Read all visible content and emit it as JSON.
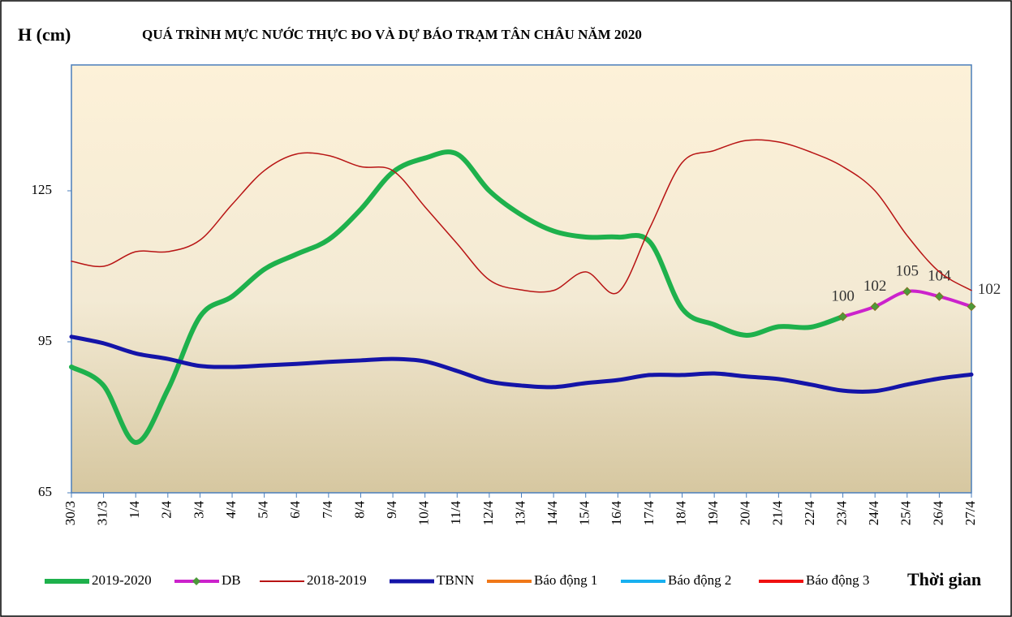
{
  "chart_data": {
    "type": "line",
    "title": "QUÁ TRÌNH MỰC NƯỚC THỰC ĐO VÀ DỰ BÁO TRẠM TÂN CHÂU NĂM 2020",
    "y_label": "H (cm)",
    "x_label": "Thời gian",
    "categories": [
      "30/3",
      "31/3",
      "1/4",
      "2/4",
      "3/4",
      "4/4",
      "5/4",
      "6/4",
      "7/4",
      "8/4",
      "9/4",
      "10/4",
      "11/4",
      "12/4",
      "13/4",
      "14/4",
      "15/4",
      "16/4",
      "17/4",
      "18/4",
      "19/4",
      "20/4",
      "21/4",
      "22/4",
      "23/4",
      "24/4",
      "25/4",
      "26/4",
      "27/4"
    ],
    "ylim": [
      65,
      150
    ],
    "yticks": [
      65,
      95,
      125
    ],
    "smooth": true,
    "series": [
      {
        "name": "2019-2020",
        "color": "#1eb14c",
        "values": [
          90,
          86.3,
          75,
          85.5,
          100,
          104,
          109.4,
          112.4,
          115.3,
          121.3,
          128.7,
          131.5,
          132.3,
          125,
          120.2,
          117,
          115.8,
          115.8,
          114.8,
          101.6,
          98.4,
          96.3,
          98,
          97.9,
          100,
          null,
          null,
          null,
          null
        ]
      },
      {
        "name": "DB",
        "color": "#cc22cc",
        "marker": "#4c9a3a",
        "data_labels": true,
        "values": [
          null,
          null,
          null,
          null,
          null,
          null,
          null,
          null,
          null,
          null,
          null,
          null,
          null,
          null,
          null,
          null,
          null,
          null,
          null,
          null,
          null,
          null,
          null,
          null,
          100,
          102,
          105,
          104,
          102
        ]
      },
      {
        "name": "2018-2019",
        "color": "#b81414",
        "values": [
          111,
          110,
          112.9,
          112.9,
          115.2,
          122.3,
          129,
          132.3,
          132,
          129.8,
          129,
          121.8,
          114.5,
          107.3,
          105.3,
          105.2,
          108.9,
          104.8,
          117.7,
          130.6,
          133,
          135,
          134.7,
          132.7,
          129.8,
          125,
          116.1,
          108.9,
          105.2
        ]
      },
      {
        "name": "TBNN",
        "color": "#1414a8",
        "values": [
          96,
          94.7,
          92.7,
          91.6,
          90.2,
          90,
          90.3,
          90.6,
          91,
          91.3,
          91.6,
          91.1,
          89.2,
          87.1,
          86.3,
          86,
          86.8,
          87.4,
          88.4,
          88.4,
          88.7,
          88.1,
          87.6,
          86.5,
          85.3,
          85.2,
          86.5,
          87.7,
          88.5
        ]
      },
      {
        "name": "Báo động 1",
        "color": "#f07818"
      },
      {
        "name": "Báo động 2",
        "color": "#18b0f0"
      },
      {
        "name": "Báo động 3",
        "color": "#f01010"
      }
    ]
  }
}
